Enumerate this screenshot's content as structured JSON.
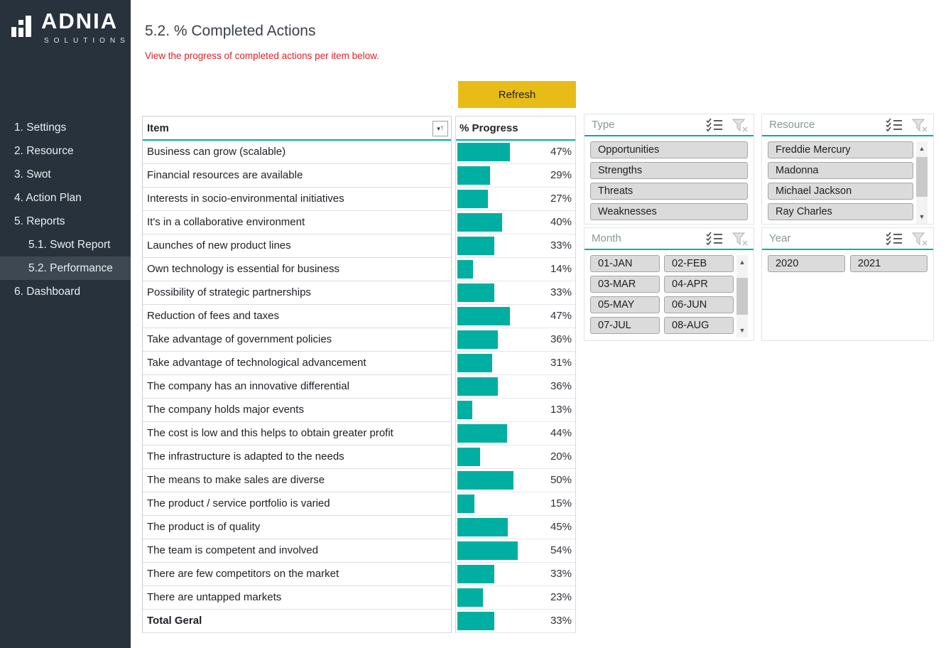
{
  "sidebar": {
    "logo": {
      "brand": "ADNIA",
      "sub": "SOLUTIONS"
    },
    "items": [
      {
        "label": "1. Settings",
        "indent": false,
        "active": false
      },
      {
        "label": "2. Resource",
        "indent": false,
        "active": false
      },
      {
        "label": "3. Swot",
        "indent": false,
        "active": false
      },
      {
        "label": "4. Action Plan",
        "indent": false,
        "active": false
      },
      {
        "label": "5. Reports",
        "indent": false,
        "active": false
      },
      {
        "label": "5.1. Swot Report",
        "indent": true,
        "active": false
      },
      {
        "label": "5.2. Performance",
        "indent": true,
        "active": true
      },
      {
        "label": "6. Dashboard",
        "indent": false,
        "active": false
      }
    ]
  },
  "header": {
    "title": "5.2. % Completed Actions",
    "subtitle": "View the progress of completed actions per item below.",
    "refresh_label": "Refresh"
  },
  "table": {
    "item_header": "Item",
    "progress_header": "% Progress",
    "rows": [
      {
        "item": "Business can grow (scalable)",
        "pct": 47,
        "total": false
      },
      {
        "item": "Financial resources are available",
        "pct": 29,
        "total": false
      },
      {
        "item": "Interests in socio-environmental initiatives",
        "pct": 27,
        "total": false
      },
      {
        "item": "It's in a collaborative environment",
        "pct": 40,
        "total": false
      },
      {
        "item": "Launches of new product lines",
        "pct": 33,
        "total": false
      },
      {
        "item": "Own technology is essential for business",
        "pct": 14,
        "total": false
      },
      {
        "item": "Possibility of strategic partnerships",
        "pct": 33,
        "total": false
      },
      {
        "item": "Reduction of fees and taxes",
        "pct": 47,
        "total": false
      },
      {
        "item": "Take advantage of government policies",
        "pct": 36,
        "total": false
      },
      {
        "item": "Take advantage of technological advancement",
        "pct": 31,
        "total": false
      },
      {
        "item": "The company has an innovative differential",
        "pct": 36,
        "total": false
      },
      {
        "item": "The company holds major events",
        "pct": 13,
        "total": false
      },
      {
        "item": "The cost is low and this helps to obtain greater profit",
        "pct": 44,
        "total": false
      },
      {
        "item": "The infrastructure is adapted to the needs",
        "pct": 20,
        "total": false
      },
      {
        "item": "The means to make sales are diverse",
        "pct": 50,
        "total": false
      },
      {
        "item": "The product / service portfolio is varied",
        "pct": 15,
        "total": false
      },
      {
        "item": "The product is of quality",
        "pct": 45,
        "total": false
      },
      {
        "item": "The team is competent and involved",
        "pct": 54,
        "total": false
      },
      {
        "item": "There are few competitors on the market",
        "pct": 33,
        "total": false
      },
      {
        "item": "There are untapped markets",
        "pct": 23,
        "total": false
      },
      {
        "item": "Total Geral",
        "pct": 33,
        "total": true
      }
    ]
  },
  "slicers": {
    "type": {
      "title": "Type",
      "items": [
        "Opportunities",
        "Strengths",
        "Threats",
        "Weaknesses"
      ]
    },
    "resource": {
      "title": "Resource",
      "items": [
        "Freddie Mercury",
        "Madonna",
        "Michael Jackson",
        "Ray Charles"
      ]
    },
    "month": {
      "title": "Month",
      "items": [
        "01-JAN",
        "02-FEB",
        "03-MAR",
        "04-APR",
        "05-MAY",
        "06-JUN",
        "07-JUL",
        "08-AUG"
      ]
    },
    "year": {
      "title": "Year",
      "items": [
        "2020",
        "2021"
      ]
    }
  },
  "colors": {
    "accent_teal": "#00afa2",
    "refresh_yellow": "#e8bc16",
    "subtitle_red": "#e02128",
    "sidebar_bg": "#28323c",
    "sidebar_active_bg": "#3d4853",
    "slicer_button_gray": "#dbdbdb"
  }
}
